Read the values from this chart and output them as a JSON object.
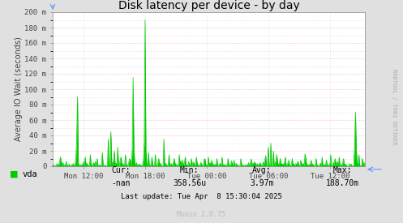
{
  "title": "Disk latency per device - by day",
  "ylabel": "Average IO Wait (seconds)",
  "bg_color": "#e0e0e0",
  "plot_bg_color": "#ffffff",
  "grid_color_major": "#ffaaaa",
  "grid_color_minor": "#cccccc",
  "line_color": "#00cc00",
  "fill_color": "#00cc00",
  "border_color": "#aaaaaa",
  "y_max": 0.2,
  "y_ticks": [
    0,
    0.02,
    0.04,
    0.06,
    0.08,
    0.1,
    0.12,
    0.14,
    0.16,
    0.18,
    0.2
  ],
  "y_tick_labels": [
    "0",
    "20 m",
    "40 m",
    "60 m",
    "80 m",
    "100 m",
    "120 m",
    "140 m",
    "160 m",
    "180 m",
    "200 m"
  ],
  "x_tick_labels": [
    "Mon 12:00",
    "Mon 18:00",
    "Tue 00:00",
    "Tue 06:00",
    "Tue 12:00"
  ],
  "legend_label": "vda",
  "legend_color": "#00cc00",
  "cur_label": "Cur:",
  "cur_val": "-nan",
  "min_label": "Min:",
  "min_val": "358.56u",
  "avg_label": "Avg:",
  "avg_val": "3.97m",
  "max_label": "Max:",
  "max_val": "188.70m",
  "last_update": "Last update: Tue Apr  8 15:30:04 2025",
  "munin_version": "Munin 2.0.75",
  "rrdtool_label": "RRDTOOL / TOBI OETIKER",
  "title_fontsize": 10,
  "axis_fontsize": 7,
  "tick_fontsize": 6.5,
  "legend_fontsize": 7.5
}
